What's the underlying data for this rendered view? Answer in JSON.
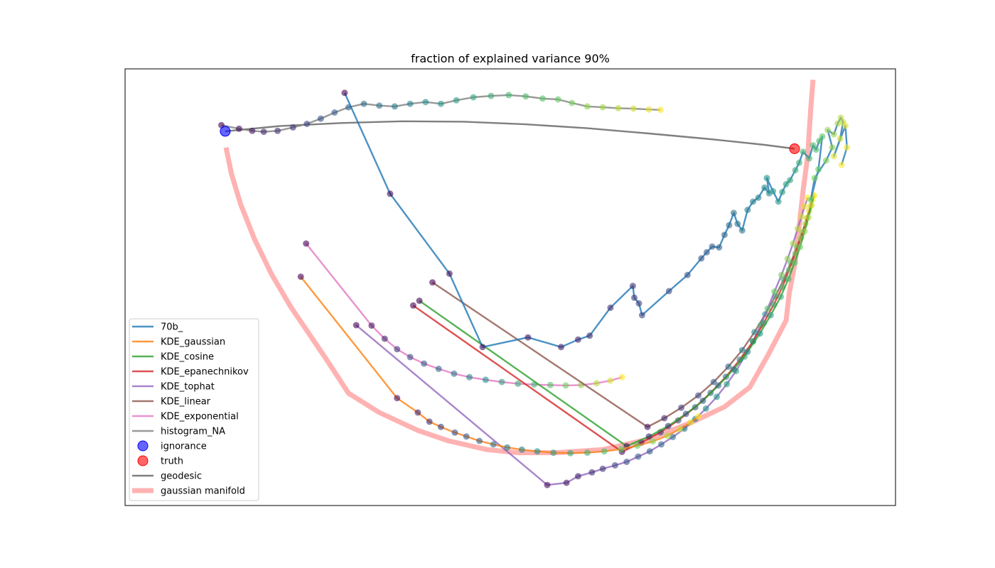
{
  "chart_data": {
    "type": "line",
    "title": "fraction of explained variance 90%",
    "xlabel": "",
    "ylabel": "",
    "xlim": [
      0,
      1
    ],
    "ylim": [
      0,
      1
    ],
    "grid": false,
    "axis_ticks": false,
    "legend_placement": "lower-left",
    "series": [
      {
        "name": "70b_",
        "kind": "line+markers",
        "color": "#1f77b4",
        "points": [
          [
            0.285,
            0.945
          ],
          [
            0.344,
            0.714
          ],
          [
            0.421,
            0.531
          ],
          [
            0.464,
            0.363
          ],
          [
            0.523,
            0.385
          ],
          [
            0.566,
            0.363
          ],
          [
            0.588,
            0.38
          ],
          [
            0.603,
            0.389
          ],
          [
            0.63,
            0.453
          ],
          [
            0.659,
            0.503
          ],
          [
            0.661,
            0.476
          ],
          [
            0.667,
            0.463
          ],
          [
            0.671,
            0.436
          ],
          [
            0.706,
            0.491
          ],
          [
            0.73,
            0.528
          ],
          [
            0.748,
            0.566
          ],
          [
            0.755,
            0.58
          ],
          [
            0.762,
            0.593
          ],
          [
            0.771,
            0.591
          ],
          [
            0.778,
            0.62
          ],
          [
            0.784,
            0.642
          ],
          [
            0.79,
            0.67
          ],
          [
            0.795,
            0.645
          ],
          [
            0.801,
            0.63
          ],
          [
            0.808,
            0.677
          ],
          [
            0.815,
            0.696
          ],
          [
            0.822,
            0.705
          ],
          [
            0.83,
            0.728
          ],
          [
            0.836,
            0.715
          ],
          [
            0.833,
            0.75
          ],
          [
            0.841,
            0.72
          ],
          [
            0.848,
            0.696
          ],
          [
            0.853,
            0.718
          ],
          [
            0.858,
            0.736
          ],
          [
            0.863,
            0.745
          ],
          [
            0.87,
            0.768
          ],
          [
            0.875,
            0.785
          ],
          [
            0.88,
            0.81
          ],
          [
            0.888,
            0.795
          ],
          [
            0.893,
            0.825
          ],
          [
            0.897,
            0.815
          ],
          [
            0.901,
            0.835
          ],
          [
            0.905,
            0.845
          ],
          [
            0.9,
            0.77
          ],
          [
            0.89,
            0.7
          ],
          [
            0.895,
            0.75
          ],
          [
            0.91,
            0.79
          ],
          [
            0.918,
            0.82
          ],
          [
            0.912,
            0.86
          ],
          [
            0.92,
            0.85
          ],
          [
            0.925,
            0.875
          ],
          [
            0.929,
            0.888
          ],
          [
            0.932,
            0.878
          ],
          [
            0.928,
            0.84
          ],
          [
            0.92,
            0.8
          ],
          [
            0.935,
            0.87
          ],
          [
            0.937,
            0.82
          ],
          [
            0.93,
            0.78
          ]
        ]
      },
      {
        "name": "KDE_gaussian",
        "kind": "line+markers",
        "color": "#ff7f0e",
        "points": [
          [
            0.228,
            0.524
          ],
          [
            0.353,
            0.246
          ],
          [
            0.38,
            0.213
          ],
          [
            0.395,
            0.192
          ],
          [
            0.41,
            0.18
          ],
          [
            0.428,
            0.167
          ],
          [
            0.443,
            0.158
          ],
          [
            0.46,
            0.148
          ],
          [
            0.478,
            0.14
          ],
          [
            0.496,
            0.133
          ],
          [
            0.515,
            0.128
          ],
          [
            0.535,
            0.124
          ],
          [
            0.556,
            0.121
          ],
          [
            0.578,
            0.12
          ],
          [
            0.6,
            0.121
          ],
          [
            0.622,
            0.124
          ],
          [
            0.644,
            0.129
          ],
          [
            0.665,
            0.137
          ],
          [
            0.685,
            0.147
          ],
          [
            0.704,
            0.16
          ],
          [
            0.72,
            0.175
          ],
          [
            0.734,
            0.19
          ],
          [
            0.744,
            0.204
          ]
        ]
      },
      {
        "name": "KDE_cosine",
        "kind": "line+markers",
        "color": "#2ca02c",
        "points": [
          [
            0.382,
            0.469
          ],
          [
            0.651,
            0.136
          ],
          [
            0.68,
            0.158
          ],
          [
            0.705,
            0.182
          ],
          [
            0.728,
            0.21
          ],
          [
            0.75,
            0.24
          ],
          [
            0.77,
            0.275
          ],
          [
            0.79,
            0.312
          ],
          [
            0.808,
            0.352
          ],
          [
            0.824,
            0.394
          ],
          [
            0.838,
            0.436
          ],
          [
            0.851,
            0.478
          ],
          [
            0.861,
            0.519
          ],
          [
            0.869,
            0.556
          ],
          [
            0.876,
            0.592
          ],
          [
            0.882,
            0.628
          ],
          [
            0.887,
            0.66
          ],
          [
            0.891,
            0.688
          ],
          [
            0.894,
            0.71
          ]
        ]
      },
      {
        "name": "KDE_epanechnikov",
        "kind": "line+markers",
        "color": "#d62728",
        "points": [
          [
            0.374,
            0.458
          ],
          [
            0.645,
            0.123
          ],
          [
            0.67,
            0.144
          ],
          [
            0.695,
            0.168
          ],
          [
            0.718,
            0.195
          ],
          [
            0.74,
            0.225
          ],
          [
            0.76,
            0.258
          ],
          [
            0.78,
            0.295
          ],
          [
            0.798,
            0.334
          ],
          [
            0.815,
            0.376
          ],
          [
            0.829,
            0.418
          ],
          [
            0.842,
            0.46
          ],
          [
            0.853,
            0.5
          ],
          [
            0.862,
            0.54
          ],
          [
            0.87,
            0.577
          ],
          [
            0.877,
            0.612
          ],
          [
            0.883,
            0.645
          ],
          [
            0.888,
            0.675
          ],
          [
            0.892,
            0.7
          ]
        ]
      },
      {
        "name": "KDE_tophat",
        "kind": "line+markers",
        "color": "#9467bd",
        "points": [
          [
            0.3,
            0.413
          ],
          [
            0.548,
            0.047
          ],
          [
            0.573,
            0.052
          ],
          [
            0.588,
            0.067
          ],
          [
            0.606,
            0.076
          ],
          [
            0.62,
            0.084
          ],
          [
            0.636,
            0.092
          ],
          [
            0.651,
            0.1
          ],
          [
            0.666,
            0.112
          ],
          [
            0.681,
            0.124
          ],
          [
            0.696,
            0.14
          ],
          [
            0.711,
            0.157
          ],
          [
            0.726,
            0.176
          ],
          [
            0.74,
            0.198
          ],
          [
            0.754,
            0.222
          ],
          [
            0.768,
            0.249
          ],
          [
            0.781,
            0.278
          ],
          [
            0.793,
            0.308
          ],
          [
            0.804,
            0.341
          ],
          [
            0.815,
            0.376
          ],
          [
            0.825,
            0.413
          ],
          [
            0.834,
            0.451
          ],
          [
            0.843,
            0.49
          ],
          [
            0.852,
            0.528
          ],
          [
            0.86,
            0.565
          ],
          [
            0.867,
            0.6
          ],
          [
            0.873,
            0.634
          ],
          [
            0.878,
            0.662
          ],
          [
            0.882,
            0.685
          ],
          [
            0.886,
            0.705
          ]
        ]
      },
      {
        "name": "KDE_linear",
        "kind": "line+markers",
        "color": "#8c564b",
        "points": [
          [
            0.399,
            0.511
          ],
          [
            0.678,
            0.18
          ],
          [
            0.7,
            0.2
          ],
          [
            0.722,
            0.224
          ],
          [
            0.744,
            0.252
          ],
          [
            0.764,
            0.283
          ],
          [
            0.783,
            0.318
          ],
          [
            0.801,
            0.356
          ],
          [
            0.817,
            0.397
          ],
          [
            0.831,
            0.438
          ],
          [
            0.844,
            0.479
          ],
          [
            0.855,
            0.518
          ],
          [
            0.864,
            0.556
          ],
          [
            0.872,
            0.592
          ],
          [
            0.879,
            0.626
          ],
          [
            0.885,
            0.658
          ],
          [
            0.89,
            0.686
          ],
          [
            0.894,
            0.71
          ]
        ]
      },
      {
        "name": "KDE_exponential",
        "kind": "line+markers",
        "color": "#e377c2",
        "points": [
          [
            0.235,
            0.6
          ],
          [
            0.32,
            0.412
          ],
          [
            0.337,
            0.382
          ],
          [
            0.353,
            0.358
          ],
          [
            0.37,
            0.34
          ],
          [
            0.388,
            0.325
          ],
          [
            0.407,
            0.313
          ],
          [
            0.427,
            0.302
          ],
          [
            0.447,
            0.294
          ],
          [
            0.468,
            0.288
          ],
          [
            0.489,
            0.283
          ],
          [
            0.51,
            0.279
          ],
          [
            0.531,
            0.277
          ],
          [
            0.552,
            0.276
          ],
          [
            0.572,
            0.275
          ],
          [
            0.592,
            0.276
          ],
          [
            0.612,
            0.28
          ],
          [
            0.63,
            0.286
          ],
          [
            0.645,
            0.294
          ]
        ]
      },
      {
        "name": "histogram_NA",
        "kind": "line+markers",
        "color": "#7f7f7f",
        "points": [
          [
            0.125,
            0.871
          ],
          [
            0.148,
            0.863
          ],
          [
            0.165,
            0.858
          ],
          [
            0.18,
            0.856
          ],
          [
            0.198,
            0.858
          ],
          [
            0.218,
            0.866
          ],
          [
            0.236,
            0.874
          ],
          [
            0.254,
            0.886
          ],
          [
            0.272,
            0.9
          ],
          [
            0.29,
            0.912
          ],
          [
            0.31,
            0.92
          ],
          [
            0.33,
            0.916
          ],
          [
            0.35,
            0.914
          ],
          [
            0.37,
            0.92
          ],
          [
            0.39,
            0.924
          ],
          [
            0.41,
            0.92
          ],
          [
            0.43,
            0.928
          ],
          [
            0.452,
            0.935
          ],
          [
            0.475,
            0.938
          ],
          [
            0.498,
            0.94
          ],
          [
            0.52,
            0.937
          ],
          [
            0.542,
            0.932
          ],
          [
            0.562,
            0.93
          ],
          [
            0.58,
            0.922
          ],
          [
            0.6,
            0.914
          ],
          [
            0.62,
            0.912
          ],
          [
            0.64,
            0.91
          ],
          [
            0.66,
            0.909
          ],
          [
            0.68,
            0.907
          ],
          [
            0.695,
            0.906
          ]
        ]
      },
      {
        "name": "ignorance",
        "kind": "marker",
        "color": "#0000ff",
        "points": [
          [
            0.13,
            0.857
          ]
        ]
      },
      {
        "name": "truth",
        "kind": "marker",
        "color": "#ff0000",
        "points": [
          [
            0.869,
            0.817
          ]
        ]
      },
      {
        "name": "geodesic",
        "kind": "line",
        "color": "#7f7f7f",
        "points": [
          [
            0.13,
            0.857
          ],
          [
            0.2,
            0.869
          ],
          [
            0.28,
            0.876
          ],
          [
            0.36,
            0.88
          ],
          [
            0.44,
            0.879
          ],
          [
            0.52,
            0.873
          ],
          [
            0.6,
            0.864
          ],
          [
            0.68,
            0.852
          ],
          [
            0.76,
            0.839
          ],
          [
            0.83,
            0.826
          ],
          [
            0.869,
            0.817
          ]
        ]
      },
      {
        "name": "gaussian manifold",
        "kind": "line",
        "color": "#ff0000",
        "points": [
          [
            0.131,
            0.82
          ],
          [
            0.138,
            0.76
          ],
          [
            0.15,
            0.69
          ],
          [
            0.168,
            0.61
          ],
          [
            0.19,
            0.53
          ],
          [
            0.215,
            0.455
          ],
          [
            0.24,
            0.39
          ],
          [
            0.263,
            0.33
          ],
          [
            0.29,
            0.257
          ],
          [
            0.33,
            0.213
          ],
          [
            0.38,
            0.172
          ],
          [
            0.42,
            0.148
          ],
          [
            0.47,
            0.128
          ],
          [
            0.51,
            0.121
          ],
          [
            0.56,
            0.121
          ],
          [
            0.62,
            0.128
          ],
          [
            0.68,
            0.152
          ],
          [
            0.735,
            0.19
          ],
          [
            0.778,
            0.226
          ],
          [
            0.811,
            0.271
          ],
          [
            0.835,
            0.346
          ],
          [
            0.858,
            0.424
          ],
          [
            0.862,
            0.485
          ],
          [
            0.87,
            0.56
          ],
          [
            0.875,
            0.64
          ],
          [
            0.88,
            0.72
          ],
          [
            0.886,
            0.8
          ],
          [
            0.89,
            0.91
          ],
          [
            0.893,
            0.975
          ]
        ]
      }
    ],
    "legend": [
      {
        "label": "70b_",
        "kind": "line",
        "color": "#1f77b4"
      },
      {
        "label": "KDE_gaussian",
        "kind": "line",
        "color": "#ff7f0e"
      },
      {
        "label": "KDE_cosine",
        "kind": "line",
        "color": "#2ca02c"
      },
      {
        "label": "KDE_epanechnikov",
        "kind": "line",
        "color": "#d62728"
      },
      {
        "label": "KDE_tophat",
        "kind": "line",
        "color": "#9467bd"
      },
      {
        "label": "KDE_linear",
        "kind": "line",
        "color": "#8c564b"
      },
      {
        "label": "KDE_exponential",
        "kind": "line",
        "color": "#e377c2"
      },
      {
        "label": "histogram_NA",
        "kind": "line",
        "color": "#7f7f7f"
      },
      {
        "label": "ignorance",
        "kind": "marker",
        "color": "#0000ff"
      },
      {
        "label": "truth",
        "kind": "marker",
        "color": "#ff0000"
      },
      {
        "label": "geodesic",
        "kind": "line",
        "color": "#000000"
      },
      {
        "label": "gaussian manifold",
        "kind": "thick-line",
        "color": "#ff0000"
      }
    ]
  }
}
